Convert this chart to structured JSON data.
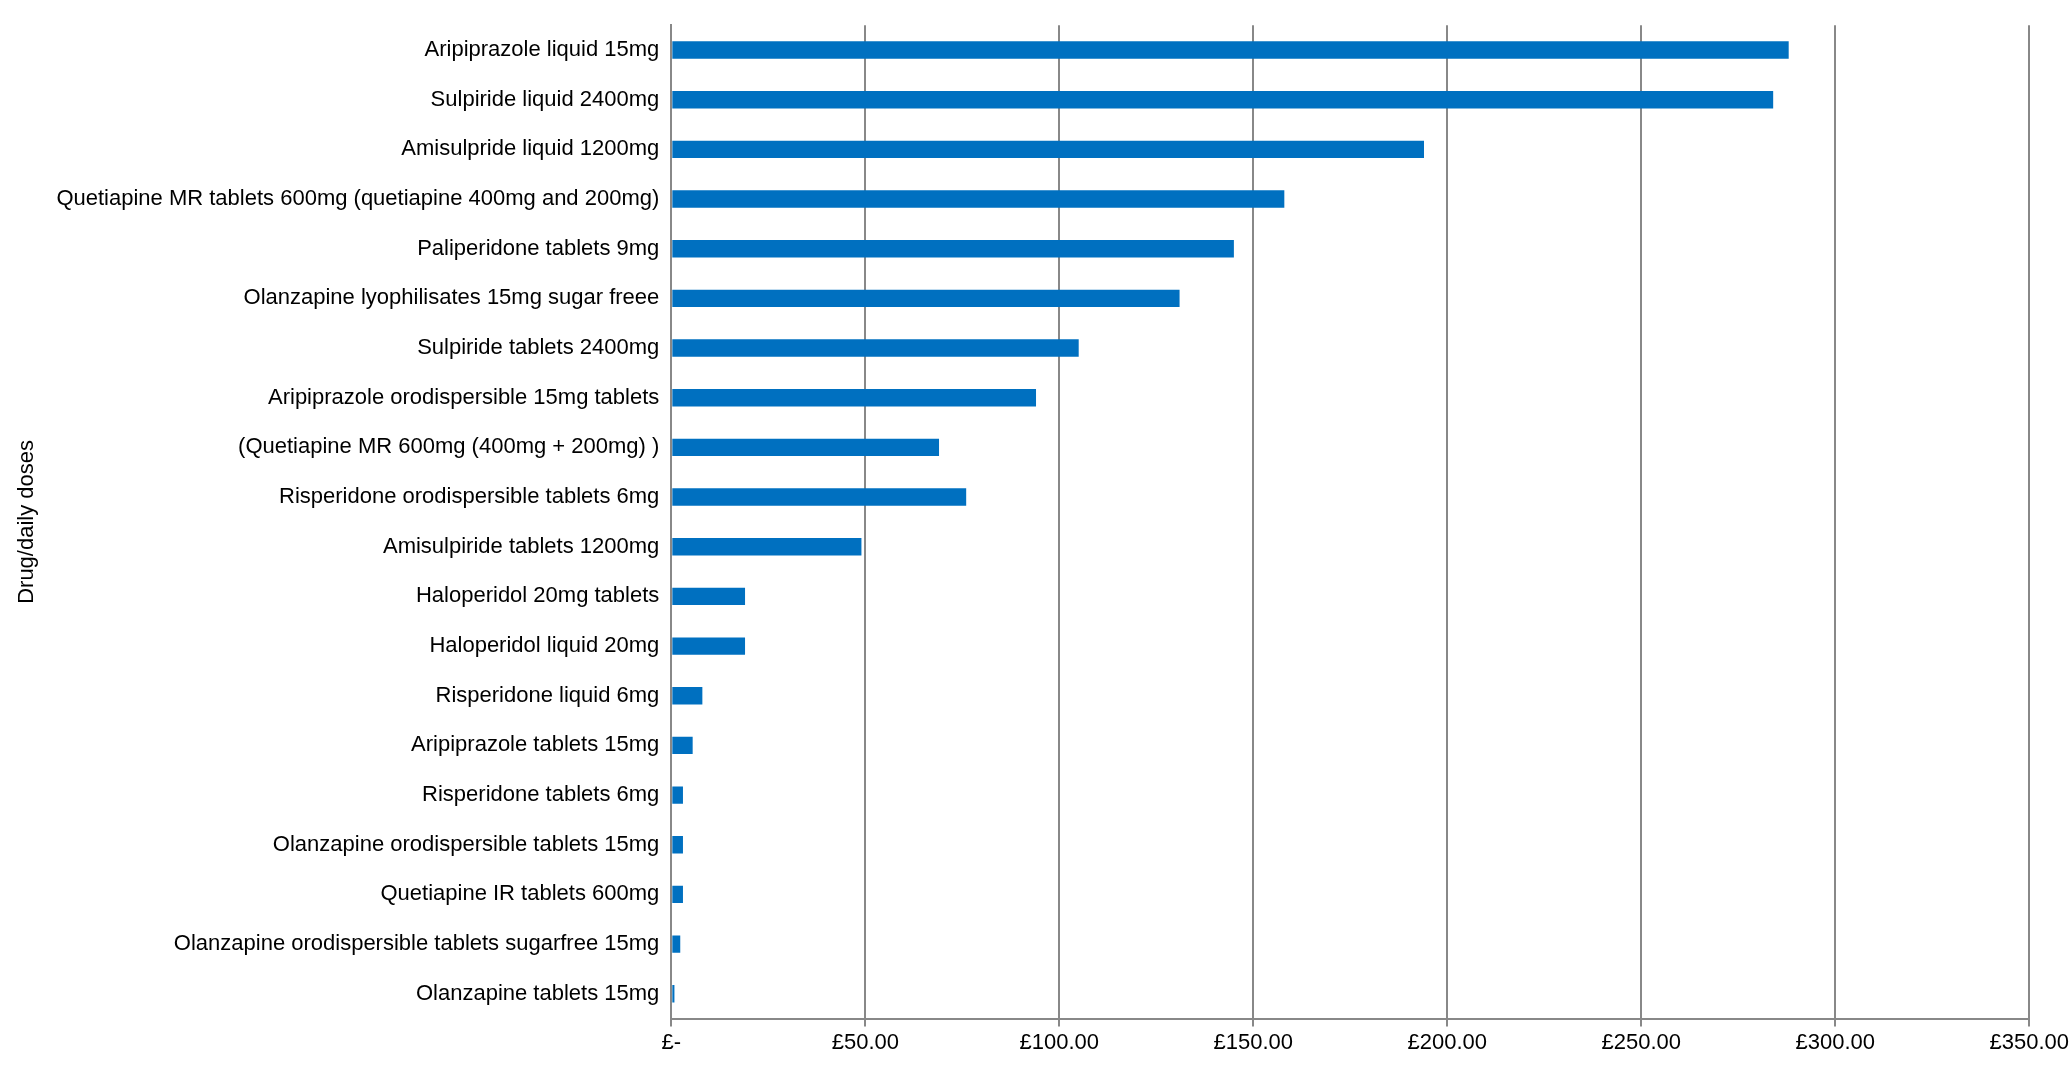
{
  "chart_data": {
    "type": "bar",
    "orientation": "horizontal",
    "ylabel": "Drug/daily doses",
    "categories": [
      "Aripiprazole liquid 15mg",
      "Sulpiride liquid 2400mg",
      "Amisulpride liquid 1200mg",
      "Quetiapine MR tablets 600mg (quetiapine 400mg and 200mg)",
      "Paliperidone tablets 9mg",
      "Olanzapine lyophilisates 15mg sugar freee",
      "Sulpiride tablets 2400mg",
      "Aripiprazole orodispersible 15mg tablets",
      "(Quetiapine MR 600mg (400mg + 200mg) )",
      "Risperidone orodispersible tablets 6mg",
      "Amisulpiride tablets 1200mg",
      "Haloperidol 20mg tablets",
      "Haloperidol liquid 20mg",
      "Risperidone liquid 6mg",
      "Aripiprazole tablets 15mg",
      "Risperidone tablets 6mg",
      "Olanzapine orodispersible tablets 15mg",
      "Quetiapine IR tablets 600mg",
      "Olanzapine orodispersible tablets sugarfree 15mg",
      "Olanzapine tablets 15mg"
    ],
    "values": [
      288,
      284,
      194,
      158,
      145,
      131,
      105,
      94,
      69,
      76,
      49,
      19,
      19,
      8,
      5.5,
      3,
      3,
      3,
      2.3,
      0.8
    ],
    "color": "#0070c0",
    "xlim": [
      0,
      350
    ],
    "xticks": [
      {
        "value": 0,
        "label": "£-"
      },
      {
        "value": 50,
        "label": "£50.00"
      },
      {
        "value": 100,
        "label": "£100.00"
      },
      {
        "value": 150,
        "label": "£150.00"
      },
      {
        "value": 200,
        "label": "£200.00"
      },
      {
        "value": 250,
        "label": "£250.00"
      },
      {
        "value": 300,
        "label": "£300.00"
      },
      {
        "value": 350,
        "label": "£350.00"
      }
    ],
    "grid": "x",
    "legend": false
  }
}
